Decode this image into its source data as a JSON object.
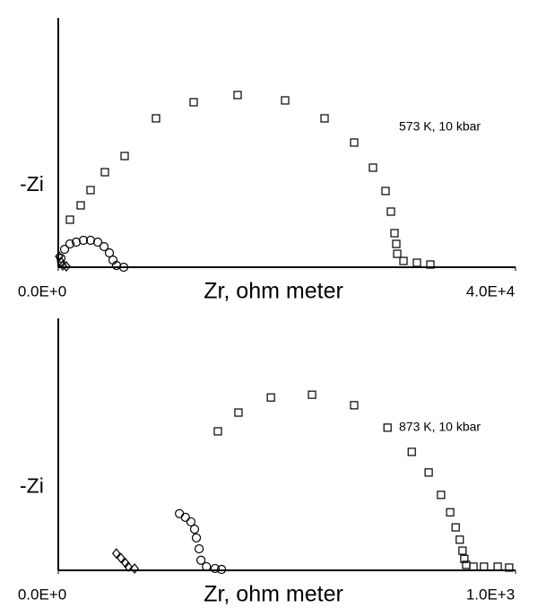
{
  "chart_data": [
    {
      "type": "scatter",
      "xlabel": "Zr, ohm meter",
      "ylabel": "-Zi",
      "annotation": "573 K, 10 kbar",
      "xlim": [
        0,
        40000
      ],
      "ylim": [
        0,
        21800
      ],
      "xticks": [
        {
          "value": 0,
          "label": "0.0E+0"
        },
        {
          "value": 40000,
          "label": "4.0E+4"
        }
      ],
      "series": [
        {
          "marker": "square",
          "color": "#000000",
          "x": [
            1020,
            1961,
            2824,
            4078,
            5804,
            8549,
            11843,
            15686,
            19843,
            23294,
            25882,
            27529,
            28627,
            29098,
            29412,
            29569,
            29647,
            30196,
            31373,
            32549
          ],
          "values": [
            4157,
            5412,
            6745,
            8314,
            9725,
            13020,
            14431,
            15059,
            14588,
            13020,
            10902,
            8706,
            6667,
            4863,
            2980,
            2039,
            1176,
            549,
            392,
            235
          ]
        },
        {
          "marker": "circle",
          "color": "#000000",
          "x": [
            235,
            549,
            1020,
            1569,
            2196,
            2824,
            3451,
            4000,
            4471,
            4784,
            5098,
            5725
          ],
          "values": [
            784,
            1569,
            2039,
            2196,
            2353,
            2353,
            2196,
            1804,
            1255,
            627,
            157,
            0
          ]
        },
        {
          "marker": "diamond",
          "color": "#000000",
          "x": [
            78,
            235,
            392,
            706
          ],
          "values": [
            941,
            471,
            157,
            78
          ]
        }
      ]
    },
    {
      "type": "scatter",
      "xlabel": "Zr, ohm meter",
      "ylabel": "-Zi",
      "annotation": "873 K, 10 kbar",
      "xlim": [
        0,
        1000
      ],
      "ylim": [
        0,
        551
      ],
      "xticks": [
        {
          "value": 0,
          "label": "0.0E+0"
        },
        {
          "value": 1000,
          "label": "1.0E+3"
        }
      ],
      "series": [
        {
          "marker": "square",
          "color": "#000000",
          "x": [
            349,
            394,
            465,
            555,
            647,
            720,
            773,
            810,
            837,
            857,
            869,
            878,
            884,
            888,
            892,
            908,
            931,
            961,
            986
          ],
          "values": [
            304,
            345,
            378,
            384,
            361,
            312,
            259,
            214,
            165,
            127,
            94,
            67,
            43,
            25,
            12,
            8,
            8,
            8,
            6
          ]
        },
        {
          "marker": "circle",
          "color": "#000000",
          "x": [
            265,
            278,
            290,
            298,
            302,
            308,
            312,
            324,
            343,
            357
          ],
          "values": [
            124,
            116,
            106,
            90,
            71,
            47,
            22,
            8,
            4,
            2
          ]
        },
        {
          "marker": "diamond",
          "color": "#000000",
          "x": [
            127,
            137,
            147,
            153,
            167
          ],
          "values": [
            37,
            27,
            16,
            8,
            4
          ]
        }
      ]
    }
  ]
}
